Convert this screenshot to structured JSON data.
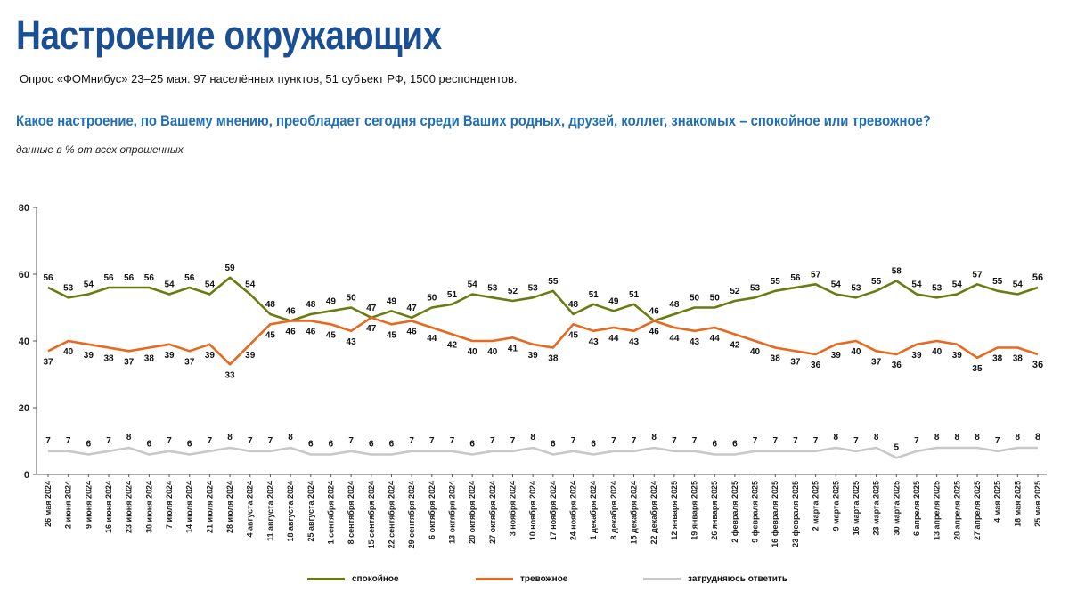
{
  "header": {
    "title": "Настроение окружающих",
    "subtitle": "Опрос «ФОМнибус» 23–25 мая. 97 населённых пунктов, 51 субъект РФ, 1500 респондентов.",
    "question": "Какое настроение, по Вашему мнению, преобладает сегодня среди Ваших родных, друзей, коллег, знакомых – спокойное или тревожное?",
    "note": "данные в % от всех опрошенных"
  },
  "colors": {
    "calm": "#6b7b12",
    "anxious": "#e8681d",
    "unsure": "#c8c8c8",
    "title": "#1b4f93",
    "question": "#1f6fb2"
  },
  "chart_data": {
    "type": "line",
    "title": "Настроение окружающих",
    "ylim": [
      0,
      80
    ],
    "yticks": [
      "0",
      "20",
      "40",
      "60",
      "80"
    ],
    "categories": [
      "26 мая 2024",
      "2 июня 2024",
      "9 июня 2024",
      "16 июня 2024",
      "23 июня 2024",
      "30 июня 2024",
      "7 июля 2024",
      "14 июля 2024",
      "21 июля 2024",
      "28 июля 2024",
      "4 августа 2024",
      "11 августа 2024",
      "18 августа 2024",
      "25 августа 2024",
      "1 сентября 2024",
      "8 сентября 2024",
      "15 сентября 2024",
      "22 сентября 2024",
      "29 сентября 2024",
      "6 октября 2024",
      "13 октября 2024",
      "20 октября 2024",
      "27 октября 2024",
      "3 ноября 2024",
      "10 ноября 2024",
      "17 ноября 2024",
      "24 ноября 2024",
      "1 декабря 2024",
      "8 декабря 2024",
      "15 декабря 2024",
      "22 декабря 2024",
      "12 января 2025",
      "19 января 2025",
      "26 января 2025",
      "2 февраля 2025",
      "9 февраля 2025",
      "16 февраля 2025",
      "23 февраля 2025",
      "2 марта 2025",
      "9 марта 2025",
      "16 марта 2025",
      "23 марта 2025",
      "30 марта 2025",
      "6 апреля 2025",
      "13 апреля 2025",
      "20 апреля 2025",
      "27 апреля 2025",
      "4 мая 2025",
      "18 мая 2025",
      "25 мая 2025"
    ],
    "series": [
      {
        "name": "спокойное",
        "key": "calm",
        "values": [
          56,
          53,
          54,
          56,
          56,
          56,
          54,
          56,
          54,
          59,
          54,
          48,
          46,
          48,
          49,
          50,
          47,
          49,
          47,
          50,
          51,
          54,
          53,
          52,
          53,
          55,
          48,
          51,
          49,
          51,
          46,
          48,
          50,
          50,
          52,
          53,
          55,
          56,
          57,
          54,
          53,
          55,
          58,
          54,
          53,
          54,
          57,
          55,
          54,
          56
        ]
      },
      {
        "name": "тревожное",
        "key": "anxious",
        "values": [
          37,
          40,
          39,
          38,
          37,
          38,
          39,
          37,
          39,
          33,
          39,
          45,
          46,
          46,
          45,
          43,
          47,
          45,
          46,
          44,
          42,
          40,
          40,
          41,
          39,
          38,
          45,
          43,
          44,
          43,
          46,
          44,
          43,
          44,
          42,
          40,
          38,
          37,
          36,
          39,
          40,
          37,
          36,
          39,
          40,
          39,
          35,
          38,
          38,
          36
        ]
      },
      {
        "name": "затрудняюсь ответить",
        "key": "unsure",
        "values": [
          7,
          7,
          6,
          7,
          8,
          6,
          7,
          6,
          7,
          8,
          7,
          7,
          8,
          6,
          6,
          7,
          6,
          6,
          7,
          7,
          7,
          6,
          7,
          7,
          8,
          6,
          7,
          6,
          7,
          7,
          8,
          7,
          7,
          6,
          6,
          7,
          7,
          7,
          7,
          8,
          7,
          8,
          5,
          7,
          8,
          8,
          8,
          7,
          8,
          8
        ]
      }
    ]
  }
}
